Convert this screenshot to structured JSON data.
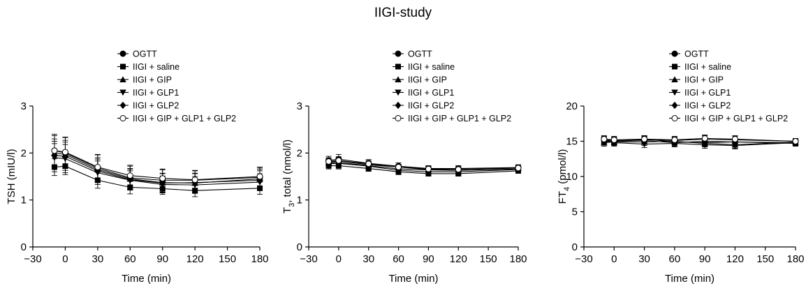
{
  "figure_title": "IIGI-study",
  "legend": [
    {
      "label": "OGTT",
      "marker": "filled-circle"
    },
    {
      "label": "IIGI + saline",
      "marker": "filled-square"
    },
    {
      "label": "IIGI + GIP",
      "marker": "filled-triangle-up"
    },
    {
      "label": "IIGI + GLP1",
      "marker": "filled-triangle-down"
    },
    {
      "label": "IIGI + GLP2",
      "marker": "filled-diamond"
    },
    {
      "label": "IIGI + GIP + GLP1 + GLP2",
      "marker": "open-circle"
    }
  ],
  "chart_data": [
    {
      "type": "line",
      "ylabel_main": "TSH (mIU/l)",
      "ylabel_sub": "",
      "ylabel_tail": "",
      "xlabel": "Time (min)",
      "xlim": [
        -30,
        180
      ],
      "xticks": [
        -30,
        0,
        30,
        60,
        90,
        120,
        150,
        180
      ],
      "xtick_labels": [
        "−30",
        "0",
        "30",
        "60",
        "90",
        "120",
        "150",
        "180"
      ],
      "ylim": [
        0,
        3
      ],
      "yticks": [
        0,
        1,
        2,
        3
      ],
      "ytick_labels": [
        "0",
        "1",
        "2",
        "3"
      ],
      "x": [
        -10,
        0,
        30,
        60,
        90,
        120,
        180
      ],
      "series": [
        {
          "name": "OGTT",
          "marker": "filled-circle",
          "values": [
            2.05,
            2.0,
            1.68,
            1.47,
            1.42,
            1.42,
            1.48
          ],
          "errors": [
            0.35,
            0.33,
            0.28,
            0.25,
            0.22,
            0.2,
            0.2
          ]
        },
        {
          "name": "IIGI + saline",
          "marker": "filled-square",
          "values": [
            1.7,
            1.72,
            1.42,
            1.27,
            1.24,
            1.2,
            1.25
          ],
          "errors": [
            0.18,
            0.18,
            0.17,
            0.14,
            0.12,
            0.13,
            0.13
          ]
        },
        {
          "name": "IIGI + GIP",
          "marker": "filled-triangle-up",
          "values": [
            2.0,
            1.97,
            1.65,
            1.45,
            1.37,
            1.36,
            1.45
          ],
          "errors": [
            0.3,
            0.3,
            0.25,
            0.22,
            0.2,
            0.2,
            0.2
          ]
        },
        {
          "name": "IIGI + GLP1",
          "marker": "filled-triangle-down",
          "values": [
            1.9,
            1.88,
            1.58,
            1.42,
            1.33,
            1.32,
            1.38
          ],
          "errors": [
            0.3,
            0.3,
            0.25,
            0.2,
            0.18,
            0.18,
            0.18
          ]
        },
        {
          "name": "IIGI + GLP2",
          "marker": "filled-diamond",
          "values": [
            1.95,
            1.93,
            1.62,
            1.43,
            1.36,
            1.37,
            1.42
          ],
          "errors": [
            0.3,
            0.3,
            0.25,
            0.22,
            0.2,
            0.2,
            0.2
          ]
        },
        {
          "name": "IIGI + GIP + GLP1 + GLP2",
          "marker": "open-circle",
          "values": [
            2.05,
            2.02,
            1.7,
            1.52,
            1.46,
            1.43,
            1.5
          ],
          "errors": [
            0.32,
            0.32,
            0.27,
            0.22,
            0.2,
            0.2,
            0.2
          ]
        }
      ]
    },
    {
      "type": "line",
      "ylabel_main": "T",
      "ylabel_sub": "3",
      "ylabel_tail": ", total (nmol/l)",
      "xlabel": "Time (min)",
      "xlim": [
        -30,
        180
      ],
      "xticks": [
        -30,
        0,
        30,
        60,
        90,
        120,
        150,
        180
      ],
      "xtick_labels": [
        "−30",
        "0",
        "30",
        "60",
        "90",
        "120",
        "150",
        "180"
      ],
      "ylim": [
        0,
        3
      ],
      "yticks": [
        0,
        1,
        2,
        3
      ],
      "ytick_labels": [
        "0",
        "1",
        "2",
        "3"
      ],
      "x": [
        -10,
        0,
        30,
        60,
        90,
        120,
        180
      ],
      "series": [
        {
          "name": "OGTT",
          "marker": "filled-circle",
          "values": [
            1.84,
            1.87,
            1.78,
            1.72,
            1.67,
            1.67,
            1.69
          ],
          "errors": [
            0.09,
            0.1,
            0.08,
            0.07,
            0.06,
            0.06,
            0.06
          ]
        },
        {
          "name": "IIGI + saline",
          "marker": "filled-square",
          "values": [
            1.73,
            1.73,
            1.67,
            1.6,
            1.56,
            1.56,
            1.62
          ],
          "errors": [
            0.07,
            0.07,
            0.06,
            0.06,
            0.05,
            0.05,
            0.05
          ]
        },
        {
          "name": "IIGI + GIP",
          "marker": "filled-triangle-up",
          "values": [
            1.8,
            1.83,
            1.75,
            1.7,
            1.65,
            1.65,
            1.68
          ],
          "errors": [
            0.08,
            0.08,
            0.07,
            0.06,
            0.06,
            0.06,
            0.06
          ]
        },
        {
          "name": "IIGI + GLP1",
          "marker": "filled-triangle-down",
          "values": [
            1.77,
            1.78,
            1.72,
            1.63,
            1.6,
            1.6,
            1.65
          ],
          "errors": [
            0.08,
            0.08,
            0.07,
            0.06,
            0.06,
            0.06,
            0.06
          ]
        },
        {
          "name": "IIGI + GLP2",
          "marker": "filled-diamond",
          "values": [
            1.79,
            1.8,
            1.73,
            1.66,
            1.64,
            1.63,
            1.66
          ],
          "errors": [
            0.08,
            0.08,
            0.07,
            0.06,
            0.06,
            0.06,
            0.06
          ]
        },
        {
          "name": "IIGI + GIP + GLP1 + GLP2",
          "marker": "open-circle",
          "values": [
            1.82,
            1.84,
            1.77,
            1.7,
            1.66,
            1.65,
            1.68
          ],
          "errors": [
            0.08,
            0.08,
            0.07,
            0.06,
            0.06,
            0.06,
            0.06
          ]
        }
      ]
    },
    {
      "type": "line",
      "ylabel_main": "FT",
      "ylabel_sub": "4",
      "ylabel_tail": " (pmol/l)",
      "xlabel": "Time (min)",
      "xlim": [
        -30,
        180
      ],
      "xticks": [
        -30,
        0,
        30,
        60,
        90,
        120,
        150,
        180
      ],
      "xtick_labels": [
        "−30",
        "0",
        "30",
        "60",
        "90",
        "120",
        "150",
        "180"
      ],
      "ylim": [
        0,
        20
      ],
      "yticks": [
        0,
        5,
        10,
        15,
        20
      ],
      "ytick_labels": [
        "0",
        "5",
        "10",
        "15",
        "20"
      ],
      "x": [
        -10,
        0,
        30,
        60,
        90,
        120,
        180
      ],
      "series": [
        {
          "name": "OGTT",
          "marker": "filled-circle",
          "values": [
            15.2,
            15.1,
            15.2,
            15.1,
            15.3,
            15.2,
            15.0
          ],
          "errors": [
            0.5,
            0.5,
            0.5,
            0.5,
            0.5,
            0.5,
            0.4
          ]
        },
        {
          "name": "IIGI + saline",
          "marker": "filled-square",
          "values": [
            15.0,
            15.0,
            15.3,
            14.9,
            14.8,
            14.9,
            14.7
          ],
          "errors": [
            0.5,
            0.5,
            0.5,
            0.5,
            0.5,
            0.5,
            0.4
          ]
        },
        {
          "name": "IIGI + GIP",
          "marker": "filled-triangle-up",
          "values": [
            14.8,
            14.9,
            14.9,
            15.0,
            14.7,
            14.5,
            14.9
          ],
          "errors": [
            0.5,
            0.5,
            0.5,
            0.5,
            0.5,
            0.5,
            0.4
          ]
        },
        {
          "name": "IIGI + GLP1",
          "marker": "filled-triangle-down",
          "values": [
            15.0,
            14.8,
            14.6,
            14.7,
            14.5,
            14.4,
            14.8
          ],
          "errors": [
            0.5,
            0.5,
            0.5,
            0.5,
            0.5,
            0.5,
            0.4
          ]
        },
        {
          "name": "IIGI + GLP2",
          "marker": "filled-diamond",
          "values": [
            15.1,
            15.0,
            15.1,
            14.8,
            15.0,
            14.9,
            14.8
          ],
          "errors": [
            0.5,
            0.5,
            0.5,
            0.5,
            0.5,
            0.5,
            0.4
          ]
        },
        {
          "name": "IIGI + GIP + GLP1 + GLP2",
          "marker": "open-circle",
          "values": [
            15.3,
            15.2,
            15.3,
            15.2,
            15.4,
            15.3,
            15.0
          ],
          "errors": [
            0.5,
            0.5,
            0.5,
            0.5,
            0.5,
            0.5,
            0.4
          ]
        }
      ]
    }
  ]
}
